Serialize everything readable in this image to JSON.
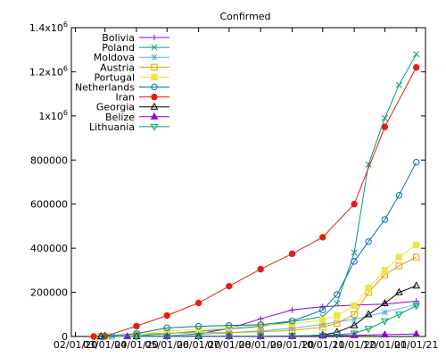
{
  "chart_data": {
    "type": "line",
    "title": "Confirmed",
    "xlabel": "",
    "ylabel": "",
    "x_tick_labels": [
      "02/01/20",
      "03/01/20",
      "04/01/20",
      "05/01/20",
      "06/01/20",
      "07/01/20",
      "08/01/20",
      "09/01/20",
      "10/01/20",
      "11/01/20",
      "12/01/20",
      "01/01/21"
    ],
    "x_labels_display": [
      "02/01/20",
      "03/01/20",
      "04/01/20",
      "05/01/20",
      "06/01/20",
      "07/01/20",
      "08/01/20",
      "09/01/20",
      "10/01/20",
      "11/01/20",
      "12/01/20",
      "01/01/21"
    ],
    "y_tick_labels": [
      "0",
      "200000",
      "400000",
      "600000",
      "800000",
      "1x10^6",
      "1.2x10^6",
      "1.4x10^6"
    ],
    "ylim": [
      0,
      1400000
    ],
    "xlim": [
      "2020-02-01",
      "2021-01-01"
    ],
    "grid": false,
    "legend_position": "top-left",
    "series": [
      {
        "name": "Bolivia",
        "color": "#9400d3",
        "marker": "plus",
        "x": [
          "2020-03-10",
          "2020-04-01",
          "2020-05-01",
          "2020-06-01",
          "2020-07-01",
          "2020-08-01",
          "2020-09-01",
          "2020-10-01",
          "2020-11-01",
          "2020-12-01",
          "2021-01-01"
        ],
        "values": [
          0,
          200,
          2500,
          12000,
          36000,
          80000,
          120000,
          135000,
          142000,
          147000,
          160000
        ]
      },
      {
        "name": "Poland",
        "color": "#009e73",
        "marker": "x",
        "x": [
          "2020-03-04",
          "2020-04-01",
          "2020-05-01",
          "2020-06-01",
          "2020-07-01",
          "2020-08-01",
          "2020-09-01",
          "2020-10-01",
          "2020-10-15",
          "2020-11-01",
          "2020-11-15",
          "2020-12-01",
          "2020-12-15",
          "2021-01-01"
        ],
        "values": [
          0,
          2500,
          13000,
          24000,
          34000,
          46000,
          67000,
          90000,
          150000,
          380000,
          780000,
          990000,
          1140000,
          1280000
        ]
      },
      {
        "name": "Moldova",
        "color": "#56b4e9",
        "marker": "star",
        "x": [
          "2020-03-08",
          "2020-04-01",
          "2020-05-01",
          "2020-06-01",
          "2020-07-01",
          "2020-08-01",
          "2020-09-01",
          "2020-10-01",
          "2020-11-01",
          "2020-12-01",
          "2021-01-01"
        ],
        "values": [
          0,
          400,
          3500,
          9000,
          17000,
          25000,
          37000,
          55000,
          78000,
          110000,
          145000
        ]
      },
      {
        "name": "Austria",
        "color": "#e69f00",
        "marker": "square",
        "x": [
          "2020-02-26",
          "2020-04-01",
          "2020-05-01",
          "2020-06-01",
          "2020-07-01",
          "2020-08-01",
          "2020-09-01",
          "2020-10-01",
          "2020-10-15",
          "2020-11-01",
          "2020-11-15",
          "2020-12-01",
          "2020-12-15",
          "2021-01-01"
        ],
        "values": [
          0,
          10000,
          15500,
          16800,
          18000,
          21500,
          27000,
          42000,
          60000,
          100000,
          200000,
          280000,
          320000,
          360000
        ]
      },
      {
        "name": "Portugal",
        "color": "#f0e442",
        "marker": "filled-square",
        "x": [
          "2020-03-02",
          "2020-04-01",
          "2020-05-01",
          "2020-06-01",
          "2020-07-01",
          "2020-08-01",
          "2020-09-01",
          "2020-10-01",
          "2020-10-15",
          "2020-11-01",
          "2020-11-15",
          "2020-12-01",
          "2020-12-15",
          "2021-01-01"
        ],
        "values": [
          0,
          8000,
          25000,
          32500,
          42000,
          51000,
          58000,
          75000,
          95000,
          140000,
          220000,
          300000,
          360000,
          415000
        ]
      },
      {
        "name": "Netherlands",
        "color": "#0072b2",
        "marker": "circle",
        "x": [
          "2020-02-27",
          "2020-04-01",
          "2020-05-01",
          "2020-06-01",
          "2020-07-01",
          "2020-08-01",
          "2020-09-01",
          "2020-10-01",
          "2020-10-15",
          "2020-11-01",
          "2020-11-15",
          "2020-12-01",
          "2020-12-15",
          "2021-01-01"
        ],
        "values": [
          0,
          13000,
          39000,
          46000,
          50000,
          53000,
          70000,
          120000,
          190000,
          340000,
          430000,
          530000,
          640000,
          790000
        ]
      },
      {
        "name": "Iran",
        "color": "#e51e10",
        "marker": "filled-circle",
        "x": [
          "2020-02-19",
          "2020-03-01",
          "2020-04-01",
          "2020-05-01",
          "2020-06-01",
          "2020-07-01",
          "2020-08-01",
          "2020-09-01",
          "2020-10-01",
          "2020-11-01",
          "2020-12-01",
          "2021-01-01"
        ],
        "values": [
          0,
          1000,
          47000,
          95000,
          152000,
          228000,
          305000,
          375000,
          450000,
          600000,
          950000,
          1220000
        ]
      },
      {
        "name": "Georgia",
        "color": "#000000",
        "marker": "triangle",
        "x": [
          "2020-02-26",
          "2020-04-01",
          "2020-05-01",
          "2020-06-01",
          "2020-07-01",
          "2020-08-01",
          "2020-09-01",
          "2020-10-01",
          "2020-10-15",
          "2020-11-01",
          "2020-11-15",
          "2020-12-01",
          "2020-12-15",
          "2021-01-01"
        ],
        "values": [
          0,
          150,
          600,
          800,
          950,
          1200,
          1500,
          6000,
          20000,
          50000,
          100000,
          150000,
          200000,
          230000
        ]
      },
      {
        "name": "Belize",
        "color": "#9400d3",
        "marker": "filled-triangle",
        "x": [
          "2020-03-23",
          "2020-05-01",
          "2020-07-01",
          "2020-08-01",
          "2020-09-01",
          "2020-10-01",
          "2020-11-01",
          "2020-12-01",
          "2021-01-01"
        ],
        "values": [
          0,
          20,
          40,
          500,
          1500,
          2800,
          5000,
          8500,
          11000
        ]
      },
      {
        "name": "Lithuania",
        "color": "#009e73",
        "marker": "inverted-triangle",
        "x": [
          "2020-02-28",
          "2020-04-01",
          "2020-05-01",
          "2020-06-01",
          "2020-07-01",
          "2020-08-01",
          "2020-09-01",
          "2020-10-01",
          "2020-10-15",
          "2020-11-01",
          "2020-11-15",
          "2020-12-01",
          "2020-12-15",
          "2021-01-01"
        ],
        "values": [
          0,
          500,
          1400,
          1700,
          1800,
          2100,
          2900,
          5000,
          8000,
          14000,
          35000,
          70000,
          100000,
          140000
        ]
      }
    ]
  }
}
